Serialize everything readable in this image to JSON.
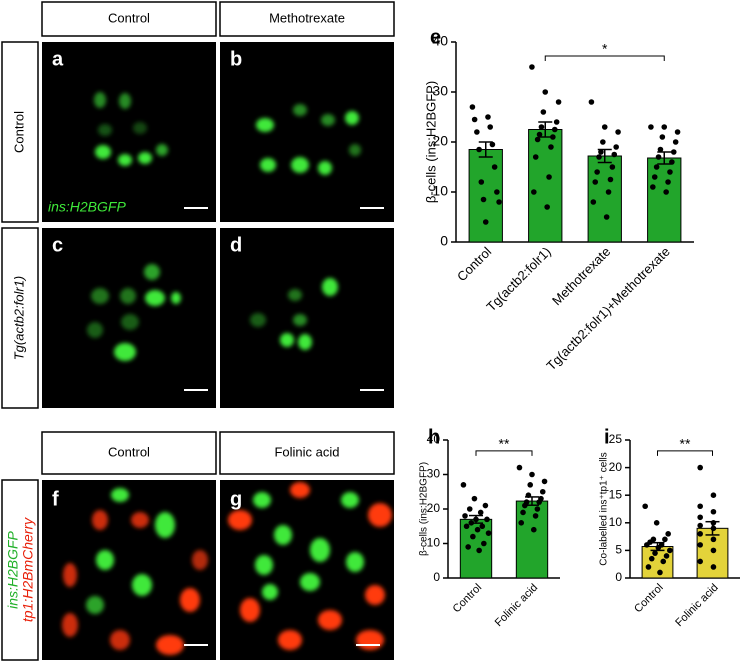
{
  "panels": {
    "headers_top": [
      "Control",
      "Methotrexate"
    ],
    "rows_top": [
      "Control",
      "Tg(actb2:folr1)"
    ],
    "letters": [
      "a",
      "b",
      "c",
      "d",
      "e",
      "f",
      "g",
      "h",
      "i"
    ],
    "image_label": "ins:H2BGFP",
    "headers_bottom": [
      "Control",
      "Folinic acid"
    ],
    "row_bottom": [
      "ins:H2BGFP",
      "tp1:H2BmCherry"
    ]
  },
  "chart_data": [
    {
      "type": "bar",
      "ylabel": "β-cells (ins:H2BGFP)",
      "color": "#22a52b",
      "categories": [
        "Control",
        "Tg(actb2:folr1)",
        "Methotrexate",
        "Tg(actb2:folr1)+Methotrexate"
      ],
      "values": [
        18.5,
        22.5,
        17.2,
        16.8
      ],
      "errors": [
        1.5,
        1.5,
        1.3,
        1.2
      ],
      "points": [
        [
          27,
          25,
          24.5,
          23,
          22,
          19.5,
          18.5,
          15,
          12,
          10,
          8.5,
          8,
          4
        ],
        [
          35,
          30,
          28,
          26,
          24,
          23,
          22.5,
          21.5,
          21,
          20.5,
          19,
          17,
          13,
          10,
          7
        ],
        [
          28,
          23,
          22,
          20,
          19,
          18,
          17.5,
          17,
          15,
          14,
          12.5,
          12,
          10,
          8,
          5
        ],
        [
          23,
          23,
          22,
          21,
          20,
          18.5,
          18,
          17,
          16,
          15,
          14,
          13,
          12,
          11,
          10
        ]
      ],
      "significance": [
        {
          "label": "*",
          "from": "Tg(actb2:folr1)",
          "to": "Tg(actb2:folr1)+Methotrexate"
        }
      ],
      "ylim": [
        0,
        40
      ],
      "yticks": [
        0,
        10,
        20,
        30,
        40
      ]
    },
    {
      "type": "bar",
      "ylabel": "β-cells (ins:H2BGFP)",
      "color": "#22a52b",
      "categories": [
        "Control",
        "Folinic acid"
      ],
      "values": [
        17,
        22.3
      ],
      "errors": [
        1.1,
        1.2
      ],
      "points": [
        [
          27,
          23,
          21,
          20,
          19,
          18,
          17,
          17,
          16,
          15,
          15,
          14,
          13,
          12,
          10,
          9,
          8
        ],
        [
          32,
          30,
          28,
          27,
          25,
          24,
          23,
          22,
          22,
          21,
          20,
          19,
          18,
          16,
          14
        ]
      ],
      "significance": [
        {
          "label": "**",
          "from": "Control",
          "to": "Folinic acid"
        }
      ],
      "ylim": [
        0,
        40
      ],
      "yticks": [
        0,
        10,
        20,
        30,
        40
      ]
    },
    {
      "type": "bar",
      "ylabel": "Co-labelled ins⁺tp1⁺ cells",
      "color": "#e3d33a",
      "categories": [
        "Control",
        "Folinic acid"
      ],
      "values": [
        5.7,
        9
      ],
      "errors": [
        0.7,
        1.2
      ],
      "points": [
        [
          13,
          10,
          8,
          7,
          7,
          6.5,
          6,
          6,
          5.5,
          5,
          4.5,
          4,
          3.5,
          3,
          2,
          1
        ],
        [
          20,
          15,
          13,
          12,
          11,
          10,
          9.5,
          9,
          8,
          7,
          6,
          5,
          3,
          2
        ]
      ],
      "significance": [
        {
          "label": "**",
          "from": "Control",
          "to": "Folinic acid"
        }
      ],
      "ylim": [
        0,
        25
      ],
      "yticks": [
        0,
        5,
        10,
        15,
        20,
        25
      ]
    }
  ]
}
